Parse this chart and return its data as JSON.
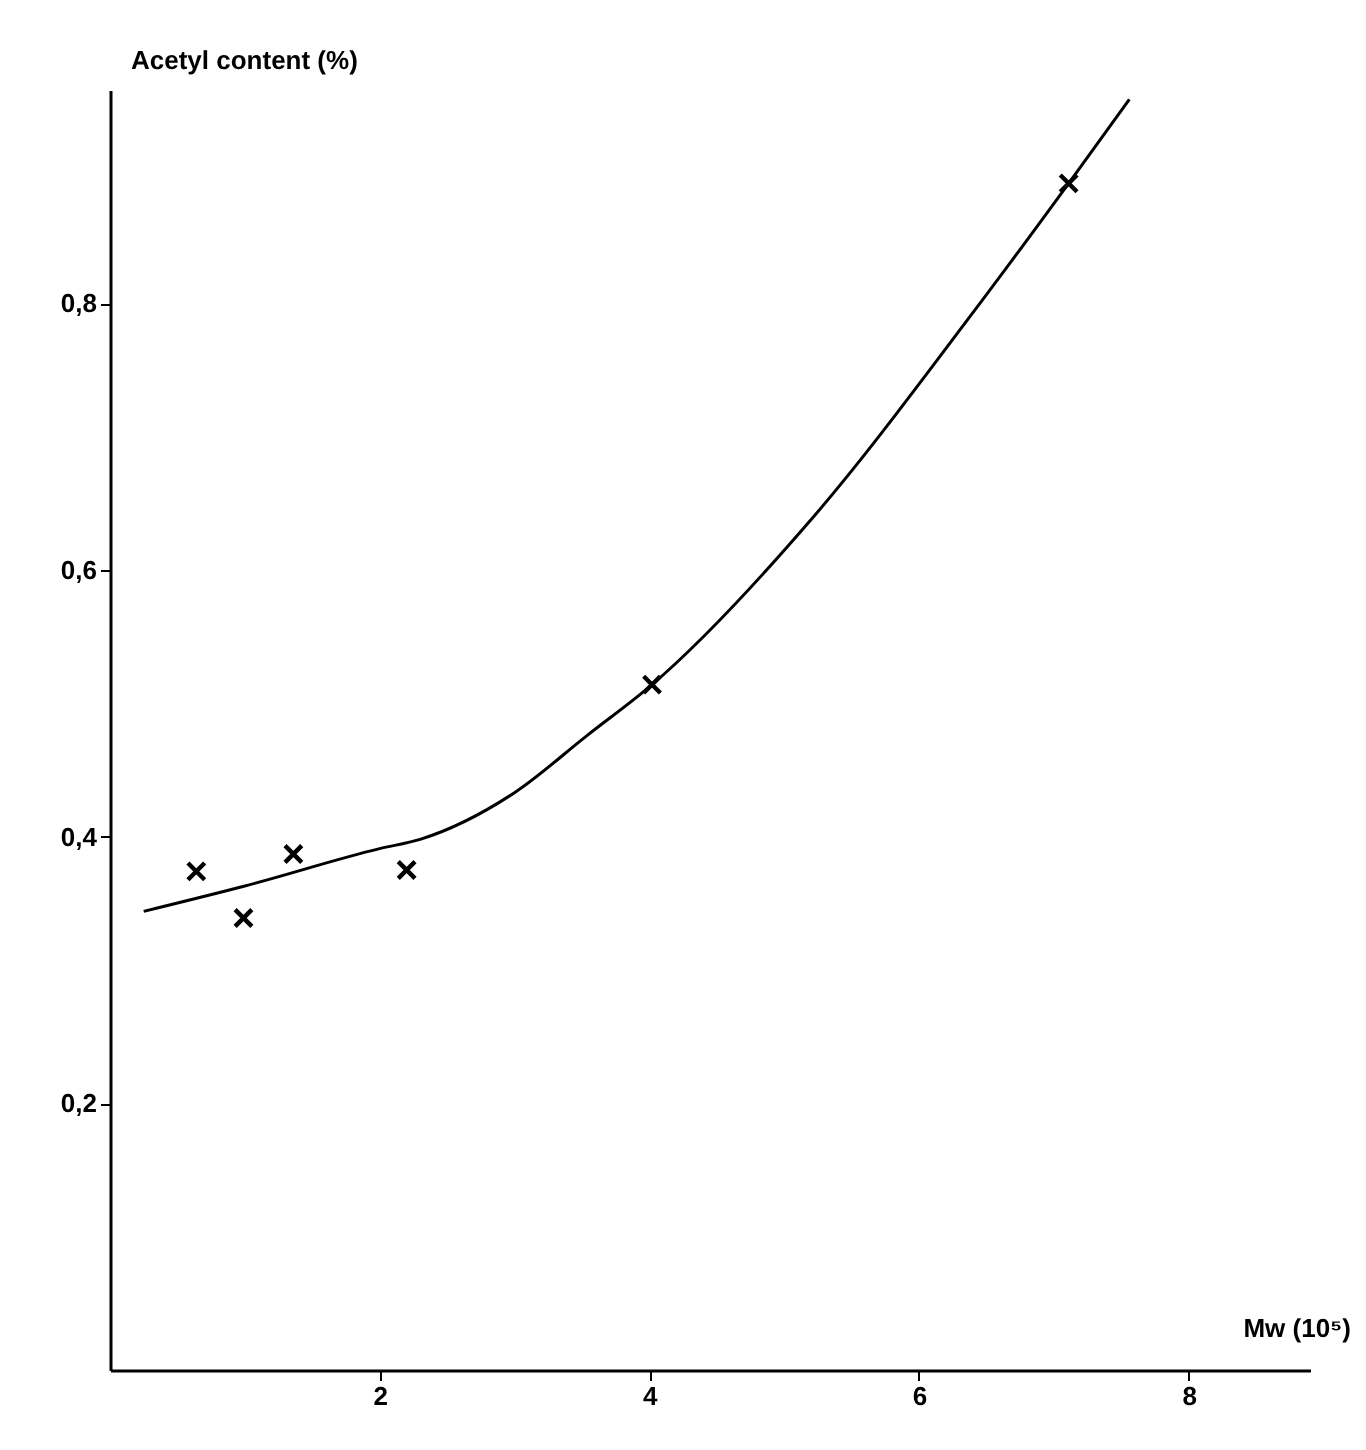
{
  "chart_data": {
    "type": "scatter",
    "xlabel": "Mw (10⁵)",
    "ylabel": "Acetyl content (%)",
    "xlim": [
      0,
      8.9
    ],
    "ylim": [
      0,
      0.96
    ],
    "xticks": [
      2,
      4,
      6,
      8
    ],
    "yticks": [
      {
        "value": 0.2,
        "label": "0,2"
      },
      {
        "value": 0.4,
        "label": "0,4"
      },
      {
        "value": 0.6,
        "label": "0,6"
      },
      {
        "value": 0.8,
        "label": "0,8"
      }
    ],
    "marker": "cross",
    "series": [
      {
        "color": "#000000",
        "x": [
          0.64,
          0.99,
          1.36,
          2.2,
          4.02,
          7.11
        ],
        "values": [
          0.374,
          0.339,
          0.387,
          0.375,
          0.514,
          0.89
        ]
      },
      {
        "type": "line",
        "color": "#000000",
        "marker": "none",
        "line_style": "solid",
        "x": [
          0.25,
          1,
          2,
          2.3,
          3,
          3.54,
          4.02,
          5.21,
          6.4,
          7.11,
          7.56
        ],
        "values": [
          0.344,
          0.363,
          0.391,
          0.398,
          0.433,
          0.476,
          0.514,
          0.639,
          0.793,
          0.89,
          0.953
        ]
      }
    ]
  }
}
